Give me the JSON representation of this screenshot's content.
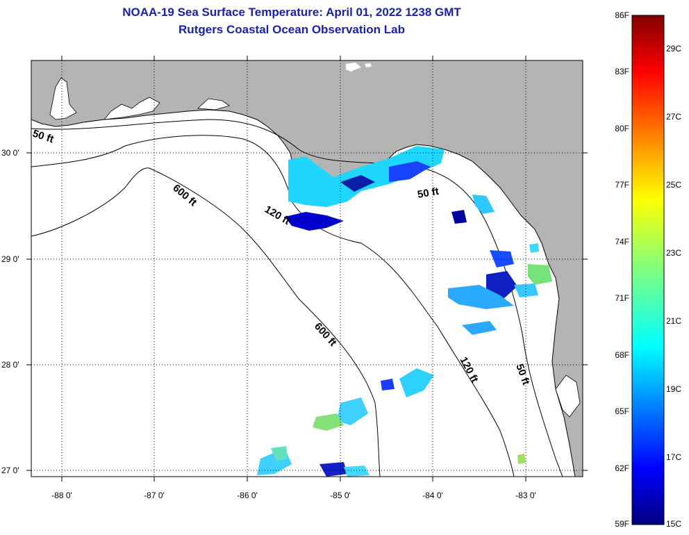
{
  "title": {
    "line1": "NOAA-19 Sea Surface Temperature:  April 01, 2022 1238 GMT",
    "line2": "Rutgers Coastal Ocean Observation Lab"
  },
  "axes": {
    "lon_ticks": [
      "-88 0'",
      "-87 0'",
      "-86 0'",
      "-85 0'",
      "-84 0'",
      "-83 0'"
    ],
    "lat_ticks": [
      "30 0'",
      "29 0'",
      "28 0'",
      "27 0'"
    ]
  },
  "isobaths": {
    "label_50": "50 ft",
    "label_120": "120 ft",
    "label_600": "600 ft"
  },
  "colorbar": {
    "fahrenheit": [
      "86F",
      "83F",
      "80F",
      "77F",
      "74F",
      "71F",
      "68F",
      "65F",
      "62F",
      "59F"
    ],
    "celsius": [
      "29C",
      "27C",
      "25C",
      "23C",
      "21C",
      "19C",
      "17C",
      "15C"
    ]
  },
  "colors": {
    "land": "#b4b4b4",
    "ocean": "#ffffff",
    "title": "#1a22a8"
  }
}
